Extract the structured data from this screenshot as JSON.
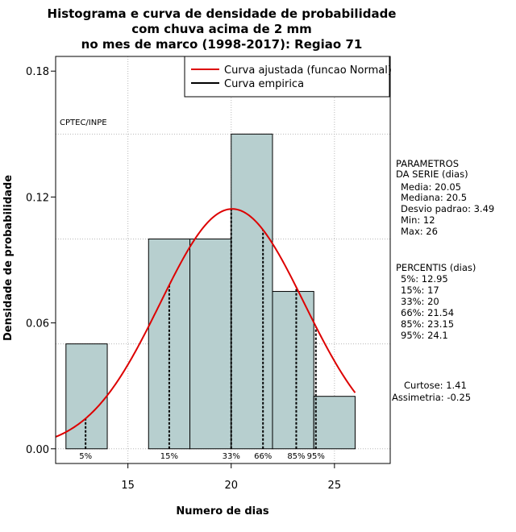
{
  "chart_data": {
    "type": "bar",
    "title_lines": [
      "Histograma e curva de densidade de probabilidade",
      "com chuva acima de 2 mm",
      "no mes de marco (1998-2017): Regiao 71"
    ],
    "xlabel": "Numero de dias",
    "ylabel": "Densidade de probabilidade",
    "xlim": [
      11.5,
      27.7
    ],
    "ylim": [
      -0.007,
      0.187
    ],
    "x_ticks": [
      15,
      20,
      25
    ],
    "y_ticks": [
      0.0,
      0.06,
      0.12,
      0.18
    ],
    "y_tick_labels": [
      "0.00",
      "0.06",
      "0.12",
      "0.18"
    ],
    "grid_x": [
      15,
      20,
      25
    ],
    "grid_y": [
      0.0,
      0.05,
      0.1,
      0.15
    ],
    "bins": [
      {
        "start": 12,
        "end": 14,
        "density": 0.05
      },
      {
        "start": 14,
        "end": 16,
        "density": 0.0
      },
      {
        "start": 16,
        "end": 18,
        "density": 0.1
      },
      {
        "start": 18,
        "end": 20,
        "density": 0.1
      },
      {
        "start": 20,
        "end": 22,
        "density": 0.15
      },
      {
        "start": 22,
        "end": 24,
        "density": 0.075
      },
      {
        "start": 24,
        "end": 26,
        "density": 0.025
      }
    ],
    "bar_color": "#b7cfcf",
    "normal_fit": {
      "mean": 20.05,
      "sd": 3.49,
      "color": "#dd0000"
    },
    "percentile_lines": [
      {
        "label": "5%",
        "x": 12.95
      },
      {
        "label": "15%",
        "x": 17
      },
      {
        "label": "33%",
        "x": 20
      },
      {
        "label": "66%",
        "x": 21.54
      },
      {
        "label": "85%",
        "x": 23.15
      },
      {
        "label": "95%",
        "x": 24.1
      }
    ],
    "legend": {
      "placement": "top-right",
      "items": [
        {
          "label": "Curva ajustada (funcao Normal)",
          "color": "#dd0000"
        },
        {
          "label": "Curva empirica",
          "color": "#000000"
        }
      ]
    },
    "watermark": "CPTEC/INPE",
    "parameters": {
      "heading": [
        "PARAMETROS",
        "DA SERIE (dias)"
      ],
      "lines": [
        "Media: 20.05",
        "Mediana: 20.5",
        "Desvio padrao: 3.49",
        "Min: 12",
        "Max: 26"
      ]
    },
    "percentis": {
      "heading": "PERCENTIS (dias)",
      "lines": [
        "5%: 12.95",
        "15%: 17",
        "33%: 20",
        "66%: 21.54",
        "85%: 23.15",
        "95%: 24.1"
      ]
    },
    "shape": {
      "lines": [
        "Curtose: 1.41",
        "Assimetria: -0.25"
      ]
    }
  }
}
